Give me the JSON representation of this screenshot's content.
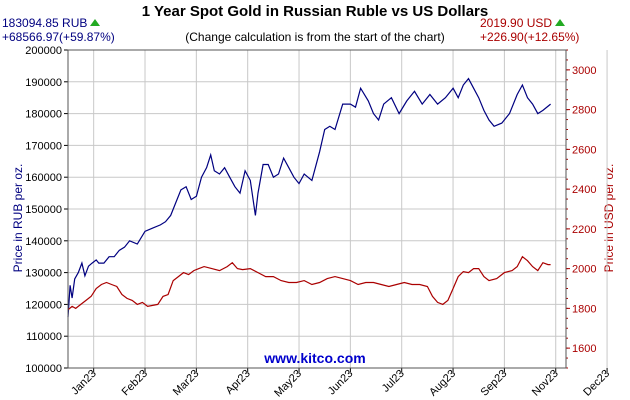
{
  "chart_data": {
    "type": "line",
    "title": "1 Year Spot Gold in Russian Ruble vs US Dollars",
    "subtitle": "(Change calculation is from the start of the chart)",
    "left_stat": {
      "price": "183094.85 RUB",
      "change": "+68566.97(+59.87%)"
    },
    "right_stat": {
      "price": "2019.90 USD",
      "change": "+226.90(+12.65%)"
    },
    "ylabel_left": "Price in RUB per oz.",
    "ylabel_right": "Price in USD per oz.",
    "watermark": "www.kitco.com",
    "ylim_left": [
      100000,
      200000
    ],
    "ylim_right": [
      1500,
      3100
    ],
    "yticks_left": [
      "100000",
      "110000",
      "120000",
      "130000",
      "140000",
      "150000",
      "160000",
      "170000",
      "180000",
      "190000",
      "200000"
    ],
    "yticks_right": [
      "1600",
      "1800",
      "2000",
      "2200",
      "2400",
      "2600",
      "2800",
      "3000"
    ],
    "x_ticks": [
      "Jan23",
      "Feb23",
      "Mar23",
      "Apr23",
      "May23",
      "Jun23",
      "Jul23",
      "Aug23",
      "Sep23",
      "Nov23",
      "Dec23"
    ],
    "grid": true,
    "series": [
      {
        "name": "RUB",
        "color": "#000080",
        "points": [
          [
            0,
            116000
          ],
          [
            0.04,
            126000
          ],
          [
            0.08,
            122000
          ],
          [
            0.13,
            128000
          ],
          [
            0.2,
            130000
          ],
          [
            0.27,
            133000
          ],
          [
            0.33,
            129000
          ],
          [
            0.4,
            132000
          ],
          [
            0.47,
            133000
          ],
          [
            0.55,
            134000
          ],
          [
            0.6,
            133000
          ],
          [
            0.7,
            133000
          ],
          [
            0.8,
            135000
          ],
          [
            0.9,
            135000
          ],
          [
            1.0,
            137000
          ],
          [
            1.1,
            138000
          ],
          [
            1.2,
            140000
          ],
          [
            1.35,
            139000
          ],
          [
            1.5,
            143000
          ],
          [
            1.65,
            144000
          ],
          [
            1.8,
            145000
          ],
          [
            1.9,
            146000
          ],
          [
            2.0,
            148000
          ],
          [
            2.1,
            152000
          ],
          [
            2.2,
            156000
          ],
          [
            2.3,
            157000
          ],
          [
            2.4,
            153000
          ],
          [
            2.5,
            154000
          ],
          [
            2.6,
            160000
          ],
          [
            2.7,
            163000
          ],
          [
            2.78,
            167000
          ],
          [
            2.85,
            162000
          ],
          [
            2.95,
            161000
          ],
          [
            3.05,
            163000
          ],
          [
            3.15,
            160000
          ],
          [
            3.25,
            157000
          ],
          [
            3.35,
            155000
          ],
          [
            3.45,
            162000
          ],
          [
            3.55,
            159000
          ],
          [
            3.65,
            148000
          ],
          [
            3.7,
            155000
          ],
          [
            3.8,
            164000
          ],
          [
            3.9,
            164000
          ],
          [
            4.0,
            160000
          ],
          [
            4.1,
            161000
          ],
          [
            4.2,
            166000
          ],
          [
            4.3,
            163000
          ],
          [
            4.4,
            160000
          ],
          [
            4.5,
            158000
          ],
          [
            4.6,
            161000
          ],
          [
            4.75,
            159000
          ],
          [
            4.9,
            168000
          ],
          [
            5.0,
            175000
          ],
          [
            5.1,
            176000
          ],
          [
            5.2,
            175000
          ],
          [
            5.35,
            183000
          ],
          [
            5.5,
            183000
          ],
          [
            5.6,
            182000
          ],
          [
            5.7,
            188000
          ],
          [
            5.85,
            184000
          ],
          [
            5.95,
            180000
          ],
          [
            6.05,
            178000
          ],
          [
            6.15,
            183000
          ],
          [
            6.3,
            185000
          ],
          [
            6.45,
            180000
          ],
          [
            6.6,
            184000
          ],
          [
            6.75,
            187000
          ],
          [
            6.9,
            183000
          ],
          [
            7.05,
            186000
          ],
          [
            7.2,
            183000
          ],
          [
            7.35,
            185000
          ],
          [
            7.5,
            188000
          ],
          [
            7.6,
            185000
          ],
          [
            7.7,
            189000
          ],
          [
            7.8,
            191000
          ],
          [
            7.9,
            188000
          ],
          [
            8.0,
            185000
          ],
          [
            8.1,
            181000
          ],
          [
            8.2,
            178000
          ],
          [
            8.3,
            176000
          ],
          [
            8.45,
            177000
          ],
          [
            8.6,
            180000
          ],
          [
            8.75,
            186000
          ],
          [
            8.85,
            189000
          ],
          [
            8.95,
            185000
          ],
          [
            9.05,
            183000
          ],
          [
            9.15,
            180000
          ],
          [
            9.25,
            181000
          ],
          [
            9.4,
            183000
          ]
        ]
      },
      {
        "name": "USD",
        "color": "#aa0000",
        "points": [
          [
            0,
            1793
          ],
          [
            0.08,
            1810
          ],
          [
            0.15,
            1800
          ],
          [
            0.25,
            1820
          ],
          [
            0.35,
            1840
          ],
          [
            0.45,
            1860
          ],
          [
            0.55,
            1900
          ],
          [
            0.65,
            1920
          ],
          [
            0.75,
            1930
          ],
          [
            0.85,
            1920
          ],
          [
            0.95,
            1910
          ],
          [
            1.05,
            1870
          ],
          [
            1.15,
            1850
          ],
          [
            1.25,
            1840
          ],
          [
            1.35,
            1820
          ],
          [
            1.45,
            1830
          ],
          [
            1.55,
            1810
          ],
          [
            1.65,
            1815
          ],
          [
            1.75,
            1820
          ],
          [
            1.85,
            1860
          ],
          [
            1.95,
            1870
          ],
          [
            2.05,
            1940
          ],
          [
            2.15,
            1960
          ],
          [
            2.25,
            1980
          ],
          [
            2.35,
            1970
          ],
          [
            2.45,
            1990
          ],
          [
            2.55,
            2000
          ],
          [
            2.65,
            2010
          ],
          [
            2.8,
            2000
          ],
          [
            2.95,
            1990
          ],
          [
            3.1,
            2010
          ],
          [
            3.2,
            2030
          ],
          [
            3.3,
            2000
          ],
          [
            3.4,
            1995
          ],
          [
            3.55,
            2000
          ],
          [
            3.7,
            1980
          ],
          [
            3.85,
            1960
          ],
          [
            4.0,
            1960
          ],
          [
            4.15,
            1940
          ],
          [
            4.3,
            1930
          ],
          [
            4.45,
            1930
          ],
          [
            4.6,
            1940
          ],
          [
            4.75,
            1920
          ],
          [
            4.9,
            1930
          ],
          [
            5.05,
            1950
          ],
          [
            5.2,
            1960
          ],
          [
            5.35,
            1950
          ],
          [
            5.5,
            1940
          ],
          [
            5.65,
            1920
          ],
          [
            5.8,
            1930
          ],
          [
            5.95,
            1930
          ],
          [
            6.1,
            1920
          ],
          [
            6.25,
            1910
          ],
          [
            6.4,
            1920
          ],
          [
            6.55,
            1930
          ],
          [
            6.7,
            1920
          ],
          [
            6.85,
            1920
          ],
          [
            7.0,
            1910
          ],
          [
            7.1,
            1860
          ],
          [
            7.2,
            1830
          ],
          [
            7.3,
            1820
          ],
          [
            7.4,
            1840
          ],
          [
            7.5,
            1900
          ],
          [
            7.6,
            1960
          ],
          [
            7.7,
            1985
          ],
          [
            7.8,
            1980
          ],
          [
            7.9,
            2000
          ],
          [
            8.0,
            2000
          ],
          [
            8.1,
            1960
          ],
          [
            8.2,
            1940
          ],
          [
            8.35,
            1950
          ],
          [
            8.5,
            1980
          ],
          [
            8.65,
            1990
          ],
          [
            8.75,
            2010
          ],
          [
            8.85,
            2060
          ],
          [
            8.95,
            2040
          ],
          [
            9.05,
            2010
          ],
          [
            9.15,
            1990
          ],
          [
            9.25,
            2030
          ],
          [
            9.35,
            2020
          ],
          [
            9.4,
            2020
          ]
        ]
      }
    ]
  }
}
